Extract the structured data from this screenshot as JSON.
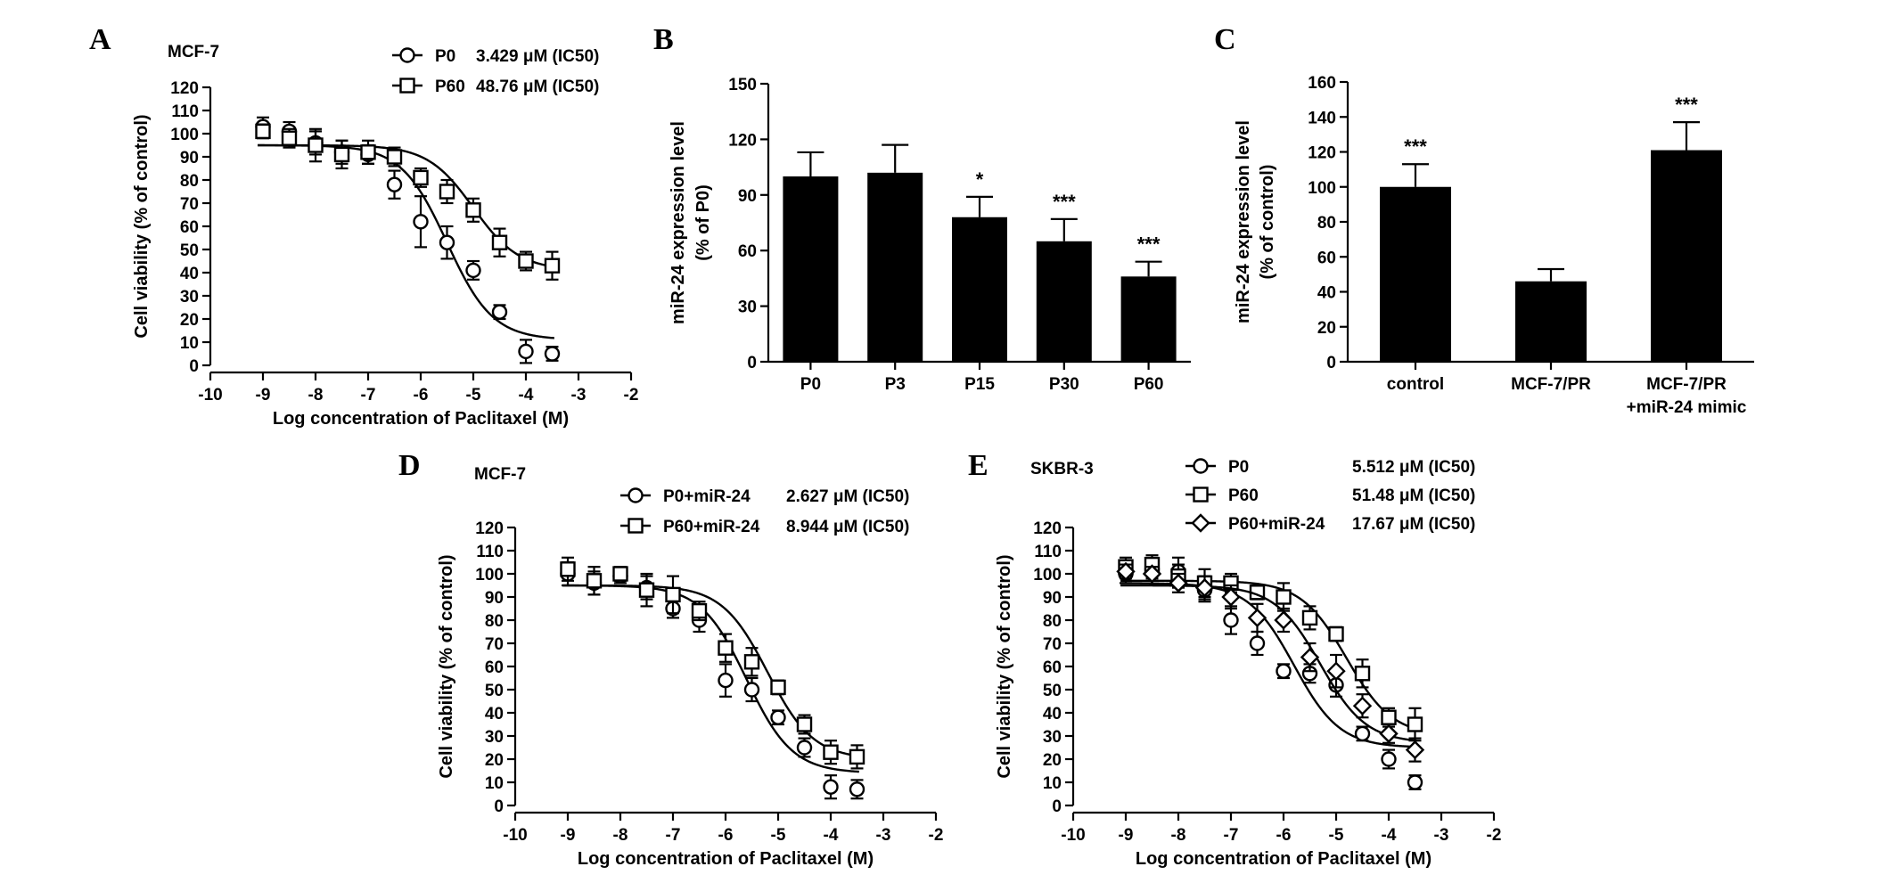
{
  "panels": {
    "A": {
      "letter": "A",
      "cell_line": "MCF-7"
    },
    "B": {
      "letter": "B"
    },
    "C": {
      "letter": "C"
    },
    "D": {
      "letter": "D",
      "cell_line": "MCF-7"
    },
    "E": {
      "letter": "E",
      "cell_line": "SKBR-3"
    }
  },
  "chart_data": [
    {
      "id": "A",
      "type": "scatter",
      "ylabel": "Cell viability (% of control)",
      "xlabel": "Log concentration of Paclitaxel (M)",
      "xlim": [
        -10,
        -2
      ],
      "ylim": [
        0,
        120
      ],
      "xticks": [
        "-10",
        "-9",
        "-8",
        "-7",
        "-6",
        "-5",
        "-4",
        "-3",
        "-2"
      ],
      "yticks": [
        "0",
        "10",
        "20",
        "30",
        "40",
        "50",
        "60",
        "70",
        "80",
        "90",
        "100",
        "110",
        "120"
      ],
      "legend_position": "top-right",
      "series": [
        {
          "name": "P0",
          "ic50_label": "3.429 μM (IC50)",
          "marker": "circle",
          "x": [
            -9,
            -8.5,
            -8,
            -7.5,
            -7,
            -6.5,
            -6,
            -5.5,
            -5,
            -4.5,
            -4,
            -3.5
          ],
          "values": [
            103,
            101,
            96,
            92,
            91,
            78,
            62,
            53,
            41,
            23,
            6,
            5
          ],
          "err": [
            4,
            4,
            5,
            5,
            4,
            6,
            11,
            7,
            4,
            3,
            5,
            3
          ],
          "fit": {
            "top": 95,
            "bottom": 11,
            "logEC50": -5.5,
            "hill": 1.0
          }
        },
        {
          "name": "P60",
          "ic50_label": "48.76 μM (IC50)",
          "marker": "square",
          "x": [
            -9,
            -8.5,
            -8,
            -7.5,
            -7,
            -6.5,
            -6,
            -5.5,
            -5,
            -4.5,
            -4,
            -3.5
          ],
          "values": [
            101,
            98,
            95,
            91,
            92,
            90,
            81,
            75,
            67,
            53,
            45,
            43
          ],
          "err": [
            3,
            4,
            7,
            6,
            5,
            4,
            4,
            5,
            5,
            6,
            4,
            6
          ],
          "fit": {
            "top": 95,
            "bottom": 41,
            "logEC50": -5.0,
            "hill": 1.0
          }
        }
      ]
    },
    {
      "id": "B",
      "type": "bar",
      "ylabel": "miR-24 expression level",
      "ylabel2": "(% of P0)",
      "categories": [
        "P0",
        "P3",
        "P15",
        "P30",
        "P60"
      ],
      "values": [
        100,
        102,
        78,
        65,
        46
      ],
      "err": [
        13,
        15,
        11,
        12,
        8
      ],
      "significance": [
        "",
        "",
        "*",
        "***",
        "***"
      ],
      "ylim": [
        0,
        150
      ],
      "yticks": [
        "0",
        "30",
        "60",
        "90",
        "120",
        "150"
      ]
    },
    {
      "id": "C",
      "type": "bar",
      "ylabel": "miR-24 expression level",
      "ylabel2": "(% of control)",
      "categories": [
        [
          "control"
        ],
        [
          "MCF-7/PR"
        ],
        [
          "MCF-7/PR",
          "+miR-24 mimic"
        ]
      ],
      "values": [
        100,
        46,
        121
      ],
      "err": [
        13,
        7,
        16
      ],
      "significance": [
        "***",
        "",
        "***"
      ],
      "ylim": [
        0,
        160
      ],
      "yticks": [
        "0",
        "20",
        "40",
        "60",
        "80",
        "100",
        "120",
        "140",
        "160"
      ]
    },
    {
      "id": "D",
      "type": "scatter",
      "ylabel": "Cell viability (% of control)",
      "xlabel": "Log concentration of Paclitaxel (M)",
      "xlim": [
        -10,
        -2
      ],
      "ylim": [
        0,
        120
      ],
      "xticks": [
        "-10",
        "-9",
        "-8",
        "-7",
        "-6",
        "-5",
        "-4",
        "-3",
        "-2"
      ],
      "yticks": [
        "0",
        "10",
        "20",
        "30",
        "40",
        "50",
        "60",
        "70",
        "80",
        "90",
        "100",
        "110",
        "120"
      ],
      "legend_position": "top-right",
      "series": [
        {
          "name": "P0+miR-24",
          "ic50_label": "2.627 μM (IC50)",
          "marker": "circle",
          "x": [
            -9,
            -8.5,
            -8,
            -7.5,
            -7,
            -6.5,
            -6,
            -5.5,
            -5,
            -4.5,
            -4,
            -3.5
          ],
          "values": [
            100,
            96,
            99,
            94,
            85,
            80,
            54,
            50,
            38,
            25,
            8,
            7
          ],
          "err": [
            5,
            5,
            3,
            5,
            4,
            5,
            7,
            5,
            3,
            4,
            5,
            4
          ],
          "fit": {
            "top": 95,
            "bottom": 14,
            "logEC50": -5.6,
            "hill": 1.0
          }
        },
        {
          "name": "P60+miR-24",
          "ic50_label": "8.944 μM (IC50)",
          "marker": "square",
          "x": [
            -9,
            -8.5,
            -8,
            -7.5,
            -7,
            -6.5,
            -6,
            -5.5,
            -5,
            -4.5,
            -4,
            -3.5
          ],
          "values": [
            102,
            97,
            100,
            93,
            91,
            84,
            68,
            62,
            51,
            35,
            23,
            21
          ],
          "err": [
            5,
            6,
            3,
            7,
            8,
            4,
            6,
            6,
            3,
            4,
            5,
            5
          ],
          "fit": {
            "top": 95,
            "bottom": 20,
            "logEC50": -5.2,
            "hill": 1.0
          }
        }
      ]
    },
    {
      "id": "E",
      "type": "scatter",
      "ylabel": "Cell viability (% of control)",
      "xlabel": "Log concentration of Paclitaxel (M)",
      "xlim": [
        -10,
        -2
      ],
      "ylim": [
        0,
        120
      ],
      "xticks": [
        "-10",
        "-9",
        "-8",
        "-7",
        "-6",
        "-5",
        "-4",
        "-3",
        "-2"
      ],
      "yticks": [
        "0",
        "10",
        "20",
        "30",
        "40",
        "50",
        "60",
        "70",
        "80",
        "90",
        "100",
        "110",
        "120"
      ],
      "legend_position": "top-right",
      "series": [
        {
          "name": "P0",
          "ic50_label": "5.512 μM (IC50)",
          "marker": "circle",
          "x": [
            -9,
            -8.5,
            -8,
            -7.5,
            -7,
            -6.5,
            -6,
            -5.5,
            -5,
            -4.5,
            -4,
            -3.5
          ],
          "values": [
            100,
            102,
            101,
            93,
            80,
            70,
            58,
            57,
            52,
            31,
            20,
            10
          ],
          "err": [
            4,
            4,
            6,
            5,
            6,
            5,
            3,
            4,
            5,
            3,
            4,
            3
          ],
          "fit": {
            "top": 96,
            "bottom": 25,
            "logEC50": -5.8,
            "hill": 1.0
          }
        },
        {
          "name": "P60",
          "ic50_label": "51.48 μM (IC50)",
          "marker": "square",
          "x": [
            -9,
            -8.5,
            -8,
            -7.5,
            -7,
            -6.5,
            -6,
            -5.5,
            -5,
            -4.5,
            -4,
            -3.5
          ],
          "values": [
            103,
            104,
            99,
            96,
            96,
            92,
            90,
            81,
            74,
            57,
            38,
            35
          ],
          "err": [
            4,
            4,
            5,
            6,
            4,
            3,
            6,
            5,
            3,
            6,
            4,
            7
          ],
          "fit": {
            "top": 97,
            "bottom": 30,
            "logEC50": -4.8,
            "hill": 1.0
          }
        },
        {
          "name": "P60+miR-24",
          "ic50_label": "17.67 μM (IC50)",
          "marker": "diamond",
          "x": [
            -9,
            -8.5,
            -8,
            -7.5,
            -7,
            -6.5,
            -6,
            -5.5,
            -5,
            -4.5,
            -4,
            -3.5
          ],
          "values": [
            101,
            100,
            96,
            94,
            90,
            81,
            80,
            64,
            58,
            43,
            31,
            24
          ],
          "err": [
            3,
            3,
            4,
            5,
            5,
            6,
            5,
            6,
            7,
            5,
            4,
            5
          ],
          "fit": {
            "top": 95,
            "bottom": 27,
            "logEC50": -5.3,
            "hill": 1.0
          }
        }
      ]
    }
  ]
}
